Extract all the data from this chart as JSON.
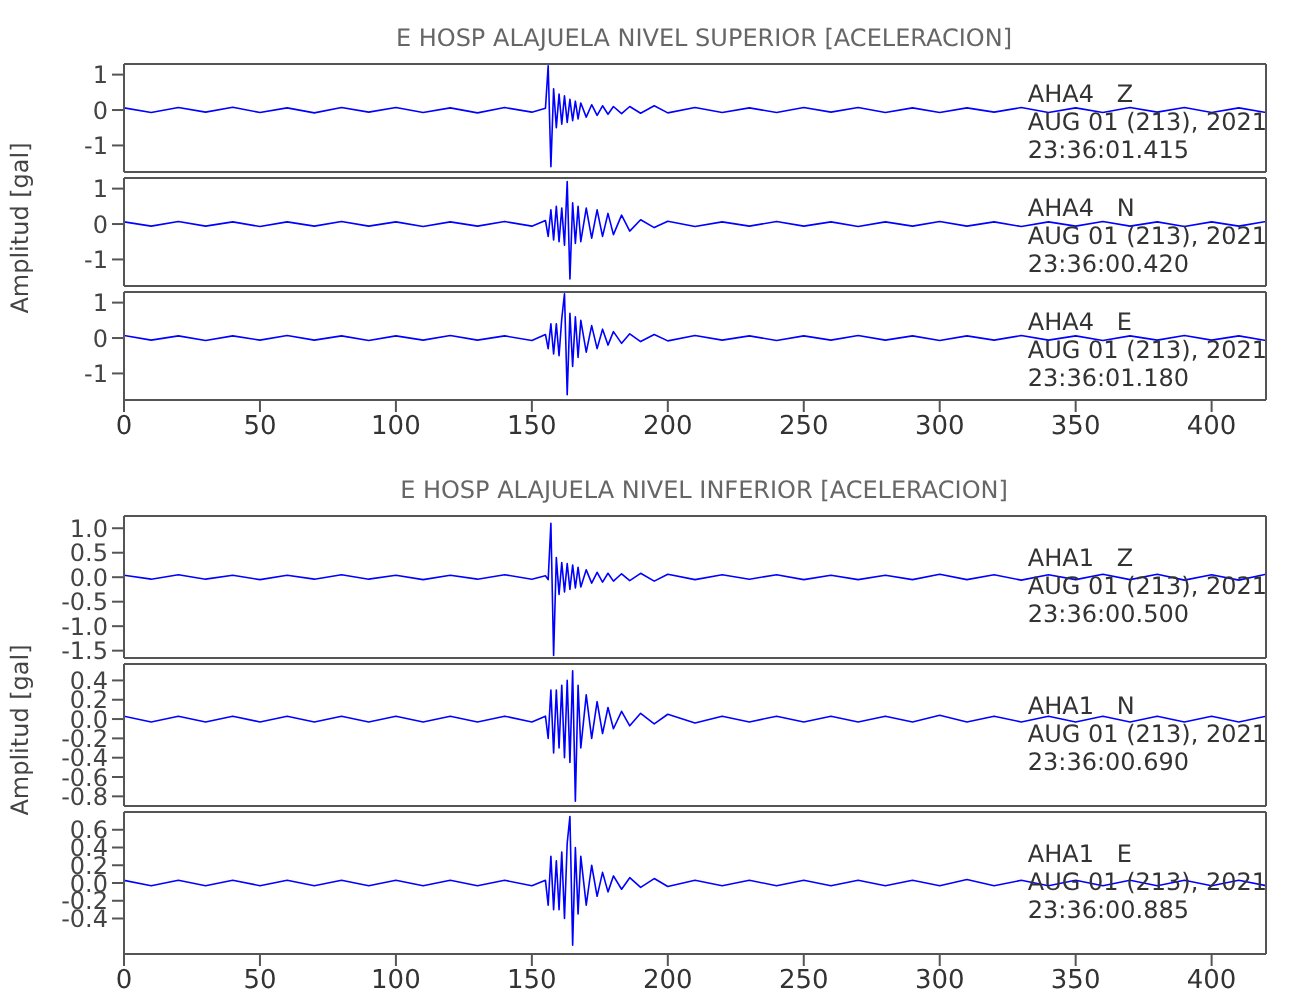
{
  "chart_data": [
    {
      "type": "line",
      "title": "E HOSP ALAJUELA NIVEL SUPERIOR [ACELERACION]",
      "color": "#0000ff",
      "annotations": [
        "AHA4   Z",
        "AUG 01 (213), 2021",
        "23:36:01.415"
      ],
      "xlim": [
        0,
        420
      ],
      "xticks": [
        0,
        50,
        100,
        150,
        200,
        250,
        300,
        350,
        400
      ],
      "ylim": [
        -1.75,
        1.3
      ],
      "yticks": [
        1,
        0,
        -1
      ],
      "tick_labels": "y",
      "x": [
        0,
        10,
        20,
        30,
        40,
        50,
        60,
        70,
        80,
        90,
        100,
        110,
        120,
        130,
        140,
        150,
        155,
        156,
        157,
        158,
        159,
        160,
        161,
        162,
        163,
        164,
        165,
        166,
        167,
        168,
        170,
        172,
        174,
        176,
        178,
        180,
        183,
        186,
        190,
        195,
        200,
        210,
        220,
        230,
        240,
        250,
        260,
        270,
        280,
        290,
        300,
        310,
        320,
        330,
        340,
        350,
        360,
        370,
        380,
        390,
        400,
        410,
        420
      ],
      "values": [
        0.06,
        -0.07,
        0.07,
        -0.06,
        0.08,
        -0.07,
        0.06,
        -0.08,
        0.07,
        -0.06,
        0.07,
        -0.07,
        0.06,
        -0.08,
        0.07,
        -0.06,
        0.05,
        1.25,
        -1.6,
        0.6,
        -0.5,
        0.45,
        -0.4,
        0.4,
        -0.35,
        0.3,
        -0.3,
        0.25,
        -0.25,
        0.2,
        -0.2,
        0.15,
        -0.15,
        0.12,
        -0.12,
        0.1,
        -0.1,
        0.1,
        -0.09,
        0.12,
        -0.08,
        0.07,
        -0.07,
        0.06,
        -0.07,
        0.07,
        -0.06,
        0.07,
        -0.07,
        0.06,
        -0.07,
        0.06,
        -0.06,
        0.07,
        -0.07,
        0.06,
        -0.07,
        0.07,
        -0.06,
        0.07,
        -0.07,
        0.06,
        -0.07
      ]
    },
    {
      "type": "line",
      "ylabel": "Amplitud [gal]",
      "color": "#0000ff",
      "annotations": [
        "AHA4   N",
        "AUG 01 (213), 2021",
        "23:36:00.420"
      ],
      "xlim": [
        0,
        420
      ],
      "xticks": [
        0,
        50,
        100,
        150,
        200,
        250,
        300,
        350,
        400
      ],
      "ylim": [
        -1.75,
        1.3
      ],
      "yticks": [
        1,
        0,
        -1
      ],
      "tick_labels": "y",
      "x": [
        0,
        10,
        20,
        30,
        40,
        50,
        60,
        70,
        80,
        90,
        100,
        110,
        120,
        130,
        140,
        150,
        155,
        156,
        157,
        158,
        159,
        160,
        161,
        162,
        163,
        164,
        165,
        166,
        167,
        168,
        170,
        172,
        174,
        176,
        178,
        180,
        183,
        186,
        190,
        195,
        200,
        210,
        220,
        230,
        240,
        250,
        260,
        270,
        280,
        290,
        300,
        310,
        320,
        330,
        340,
        350,
        360,
        370,
        380,
        390,
        400,
        410,
        420
      ],
      "values": [
        0.06,
        -0.06,
        0.07,
        -0.06,
        0.06,
        -0.07,
        0.06,
        -0.06,
        0.07,
        -0.06,
        0.06,
        -0.07,
        0.06,
        -0.06,
        0.07,
        -0.06,
        0.1,
        -0.35,
        0.4,
        -0.45,
        0.5,
        -0.5,
        0.45,
        -0.6,
        1.2,
        -1.55,
        0.6,
        -0.55,
        0.5,
        -0.5,
        0.45,
        -0.4,
        0.4,
        -0.35,
        0.3,
        -0.3,
        0.25,
        -0.2,
        0.12,
        -0.1,
        0.08,
        -0.07,
        0.06,
        -0.06,
        0.07,
        -0.06,
        0.06,
        -0.07,
        0.06,
        -0.06,
        0.07,
        -0.06,
        0.06,
        -0.07,
        0.06,
        -0.06,
        0.07,
        -0.06,
        0.06,
        -0.07,
        0.06,
        -0.06,
        0.07
      ]
    },
    {
      "type": "line",
      "color": "#0000ff",
      "annotations": [
        "AHA4   E",
        "AUG 01 (213), 2021",
        "23:36:01.180"
      ],
      "xlim": [
        0,
        420
      ],
      "xticks": [
        0,
        50,
        100,
        150,
        200,
        250,
        300,
        350,
        400
      ],
      "ylim": [
        -1.75,
        1.3
      ],
      "yticks": [
        1,
        0,
        -1
      ],
      "x": [
        0,
        10,
        20,
        30,
        40,
        50,
        60,
        70,
        80,
        90,
        100,
        110,
        120,
        130,
        140,
        150,
        155,
        156,
        157,
        158,
        159,
        160,
        161,
        162,
        163,
        164,
        165,
        166,
        167,
        168,
        170,
        172,
        174,
        176,
        178,
        180,
        183,
        186,
        190,
        195,
        200,
        210,
        220,
        230,
        240,
        250,
        260,
        270,
        280,
        290,
        300,
        310,
        320,
        330,
        340,
        350,
        360,
        370,
        380,
        390,
        400,
        410,
        420
      ],
      "values": [
        0.07,
        -0.06,
        0.06,
        -0.07,
        0.06,
        -0.06,
        0.07,
        -0.06,
        0.06,
        -0.07,
        0.06,
        -0.06,
        0.07,
        -0.06,
        0.06,
        -0.07,
        0.1,
        -0.3,
        0.4,
        -0.45,
        0.4,
        -0.5,
        0.55,
        1.25,
        -1.6,
        0.7,
        -0.8,
        0.6,
        -0.55,
        0.5,
        -0.4,
        0.35,
        -0.3,
        0.25,
        -0.2,
        0.18,
        -0.15,
        0.12,
        -0.1,
        0.1,
        -0.08,
        0.07,
        -0.06,
        0.06,
        -0.07,
        0.06,
        -0.06,
        0.07,
        -0.06,
        0.06,
        -0.07,
        0.06,
        -0.06,
        0.07,
        -0.06,
        0.06,
        -0.07,
        0.06,
        -0.06,
        0.07,
        -0.06,
        0.06,
        -0.07
      ]
    },
    {
      "type": "line",
      "title": "E HOSP ALAJUELA NIVEL INFERIOR [ACELERACION]",
      "color": "#0000ff",
      "annotations": [
        "AHA1   Z",
        "AUG 01 (213), 2021",
        "23:36:00.500"
      ],
      "xlim": [
        0,
        420
      ],
      "xticks": [
        0,
        50,
        100,
        150,
        200,
        250,
        300,
        350,
        400
      ],
      "ylim": [
        -1.65,
        1.25
      ],
      "yticks": [
        {
          "value": 1,
          "label": "1.0"
        },
        0.5,
        {
          "value": 0,
          "label": "0.0"
        },
        -0.5,
        {
          "value": -1,
          "label": "-1.0"
        },
        -1.5
      ],
      "tick_labels": "y",
      "x": [
        0,
        10,
        20,
        30,
        40,
        50,
        60,
        70,
        80,
        90,
        100,
        110,
        120,
        130,
        140,
        150,
        155,
        156,
        157,
        158,
        159,
        160,
        161,
        162,
        163,
        164,
        165,
        166,
        167,
        168,
        170,
        172,
        174,
        176,
        178,
        180,
        183,
        186,
        190,
        195,
        200,
        210,
        220,
        230,
        240,
        250,
        260,
        270,
        280,
        290,
        300,
        310,
        320,
        330,
        340,
        350,
        360,
        370,
        380,
        390,
        400,
        410,
        420
      ],
      "values": [
        0.04,
        -0.04,
        0.05,
        -0.04,
        0.04,
        -0.05,
        0.04,
        -0.04,
        0.05,
        -0.04,
        0.04,
        -0.05,
        0.04,
        -0.04,
        0.05,
        -0.04,
        0.03,
        -0.05,
        1.1,
        -1.6,
        0.4,
        -0.35,
        0.3,
        -0.3,
        0.28,
        -0.25,
        0.25,
        -0.22,
        0.2,
        -0.2,
        0.15,
        -0.12,
        0.1,
        -0.1,
        0.08,
        -0.08,
        0.07,
        -0.07,
        0.08,
        -0.08,
        0.06,
        -0.05,
        0.05,
        -0.04,
        0.05,
        -0.05,
        0.04,
        -0.05,
        0.04,
        -0.05,
        0.06,
        -0.05,
        0.05,
        -0.06,
        0.05,
        -0.05,
        0.06,
        -0.05,
        0.06,
        -0.06,
        0.05,
        -0.06,
        0.06
      ]
    },
    {
      "type": "line",
      "ylabel": "Amplitud [gal]",
      "color": "#0000ff",
      "annotations": [
        "AHA1   N",
        "AUG 01 (213), 2021",
        "23:36:00.690"
      ],
      "xlim": [
        0,
        420
      ],
      "xticks": [
        0,
        50,
        100,
        150,
        200,
        250,
        300,
        350,
        400
      ],
      "ylim": [
        -0.9,
        0.57
      ],
      "yticks": [
        0.4,
        0.2,
        {
          "value": 0,
          "label": "0.0"
        },
        -0.2,
        -0.4,
        -0.6,
        -0.8
      ],
      "tick_labels": "y",
      "x": [
        0,
        10,
        20,
        30,
        40,
        50,
        60,
        70,
        80,
        90,
        100,
        110,
        120,
        130,
        140,
        150,
        155,
        156,
        157,
        158,
        159,
        160,
        161,
        162,
        163,
        164,
        165,
        166,
        167,
        168,
        170,
        172,
        174,
        176,
        178,
        180,
        183,
        186,
        190,
        195,
        200,
        210,
        220,
        230,
        240,
        250,
        260,
        270,
        280,
        290,
        300,
        310,
        320,
        330,
        340,
        350,
        360,
        370,
        380,
        390,
        400,
        410,
        420
      ],
      "values": [
        0.03,
        -0.03,
        0.03,
        -0.03,
        0.03,
        -0.03,
        0.03,
        -0.03,
        0.03,
        -0.03,
        0.03,
        -0.03,
        0.03,
        -0.03,
        0.03,
        -0.03,
        0.03,
        -0.2,
        0.3,
        -0.35,
        0.3,
        -0.3,
        0.35,
        -0.4,
        0.4,
        -0.45,
        0.5,
        -0.85,
        0.35,
        -0.3,
        0.25,
        -0.2,
        0.18,
        -0.15,
        0.12,
        -0.1,
        0.08,
        -0.07,
        0.06,
        -0.05,
        0.05,
        -0.04,
        0.03,
        -0.03,
        0.03,
        -0.03,
        0.03,
        -0.03,
        0.03,
        -0.03,
        0.04,
        -0.03,
        0.03,
        -0.03,
        0.03,
        -0.03,
        0.03,
        -0.03,
        0.03,
        -0.03,
        0.03,
        -0.03,
        0.03
      ]
    },
    {
      "type": "line",
      "color": "#0000ff",
      "annotations": [
        "AHA1   E",
        "AUG 01 (213), 2021",
        "23:36:00.885"
      ],
      "xlim": [
        0,
        420
      ],
      "xticks": [
        0,
        50,
        100,
        150,
        200,
        250,
        300,
        350,
        400
      ],
      "ylim": [
        -0.8,
        0.8
      ],
      "yticks": [
        0.6,
        0.4,
        0.2,
        {
          "value": 0,
          "label": "0.0"
        },
        -0.2,
        -0.4
      ],
      "x": [
        0,
        10,
        20,
        30,
        40,
        50,
        60,
        70,
        80,
        90,
        100,
        110,
        120,
        130,
        140,
        150,
        155,
        156,
        157,
        158,
        159,
        160,
        161,
        162,
        163,
        164,
        165,
        166,
        167,
        168,
        170,
        172,
        174,
        176,
        178,
        180,
        183,
        186,
        190,
        195,
        200,
        210,
        220,
        230,
        240,
        250,
        260,
        270,
        280,
        290,
        300,
        310,
        320,
        330,
        340,
        350,
        360,
        370,
        380,
        390,
        400,
        410,
        420
      ],
      "values": [
        0.03,
        -0.03,
        0.03,
        -0.03,
        0.03,
        -0.03,
        0.03,
        -0.03,
        0.03,
        -0.03,
        0.03,
        -0.03,
        0.03,
        -0.03,
        0.03,
        -0.03,
        0.03,
        -0.25,
        0.3,
        -0.3,
        0.25,
        -0.3,
        0.35,
        -0.4,
        0.45,
        0.75,
        -0.7,
        0.4,
        -0.35,
        0.3,
        -0.25,
        0.2,
        -0.15,
        0.12,
        -0.1,
        0.08,
        -0.07,
        0.06,
        -0.05,
        0.05,
        -0.04,
        0.03,
        -0.03,
        0.03,
        -0.03,
        0.03,
        -0.03,
        0.03,
        -0.03,
        0.03,
        -0.03,
        0.04,
        -0.03,
        0.03,
        -0.03,
        0.03,
        -0.03,
        0.03,
        -0.03,
        0.03,
        -0.03,
        0.03,
        -0.03
      ]
    }
  ]
}
